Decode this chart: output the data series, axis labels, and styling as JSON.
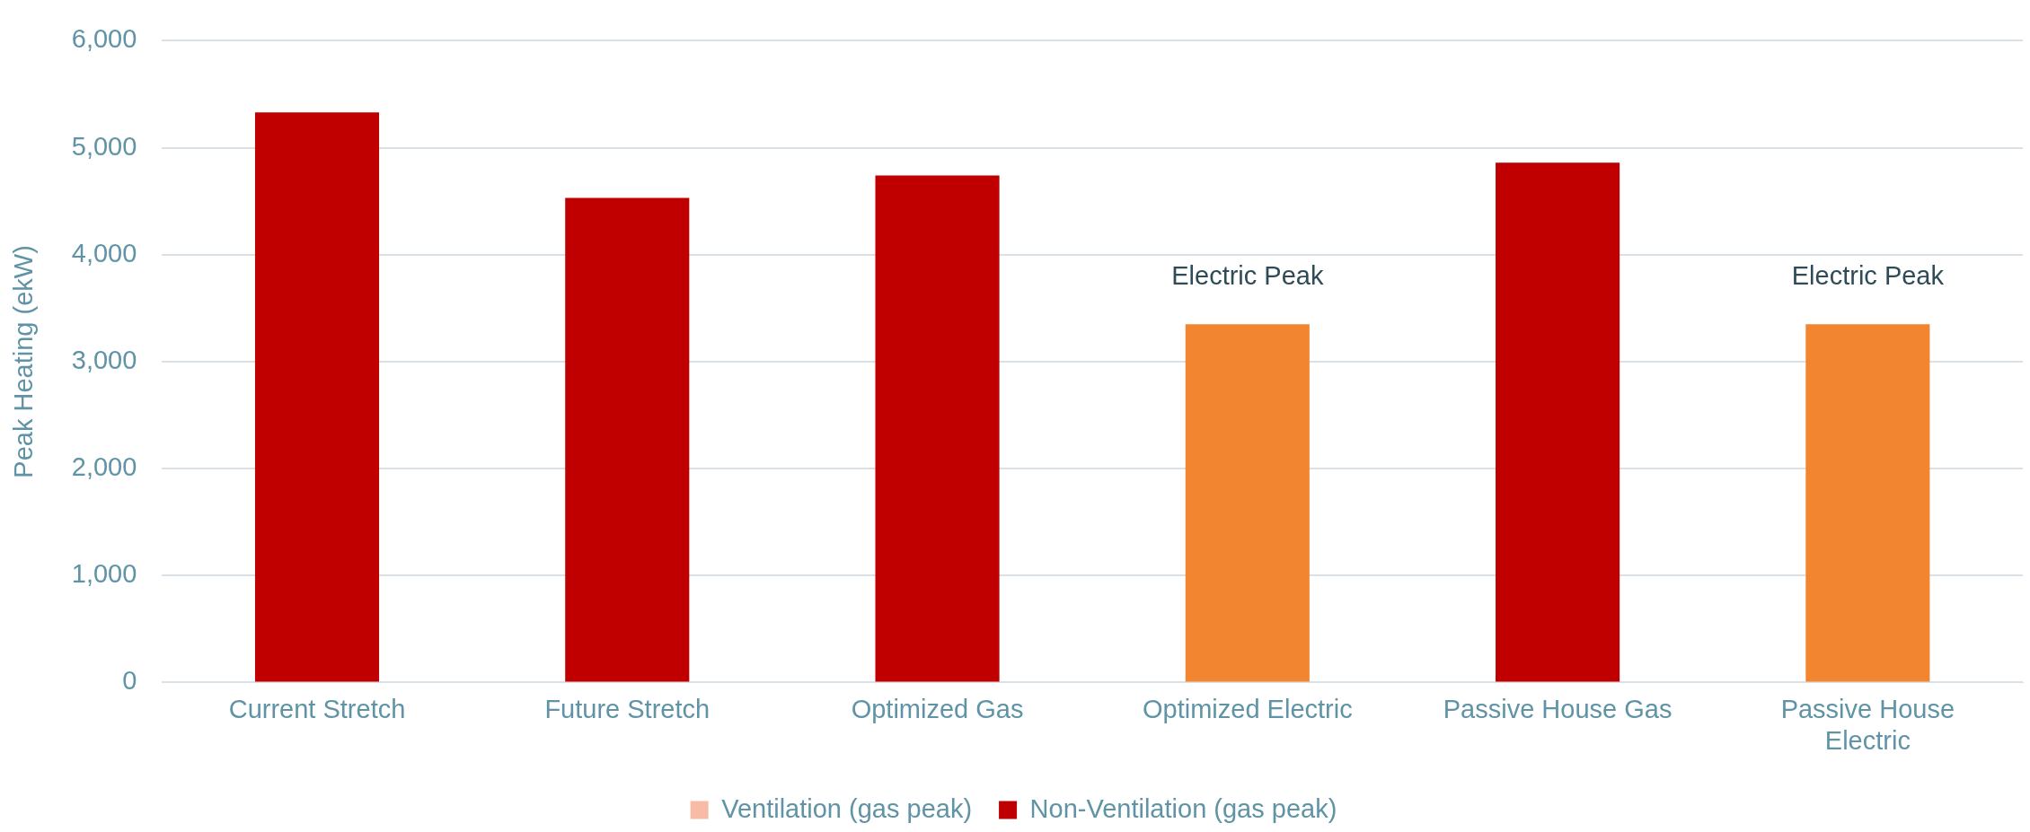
{
  "chart_data": {
    "type": "bar",
    "ylabel": "Peak Heating (ekW)",
    "categories": [
      "Current Stretch",
      "Future Stretch",
      "Optimized Gas",
      "Optimized Electric",
      "Passive House Gas",
      "Passive House Electric"
    ],
    "series": [
      {
        "name": "Ventilation (gas peak)",
        "color": "#f8bba6",
        "values": [
          null,
          null,
          null,
          null,
          null,
          null
        ]
      },
      {
        "name": "Non-Ventilation (gas peak)",
        "color": "#c00000",
        "values": [
          5330,
          4530,
          4740,
          null,
          4860,
          null
        ]
      },
      {
        "color": "#f28530",
        "values": [
          null,
          null,
          null,
          3350,
          null,
          3350
        ]
      }
    ],
    "stacked": true,
    "ylim": [
      0,
      6000
    ],
    "yticks": [
      0,
      {
        "value": 1000,
        "label": "1,000"
      },
      {
        "value": 2000,
        "label": "2,000"
      },
      {
        "value": 3000,
        "label": "3,000"
      },
      {
        "value": 4000,
        "label": "4,000"
      },
      {
        "value": 5000,
        "label": "5,000"
      },
      {
        "value": 6000,
        "label": "6,000"
      }
    ],
    "grid": "y",
    "legend": "bottom",
    "annotations": [
      {
        "text": "Electric Peak",
        "x": "Optimized Electric",
        "y": 3350
      },
      {
        "text": "Electric Peak",
        "x": "Passive House Electric",
        "y": 3350
      }
    ]
  }
}
